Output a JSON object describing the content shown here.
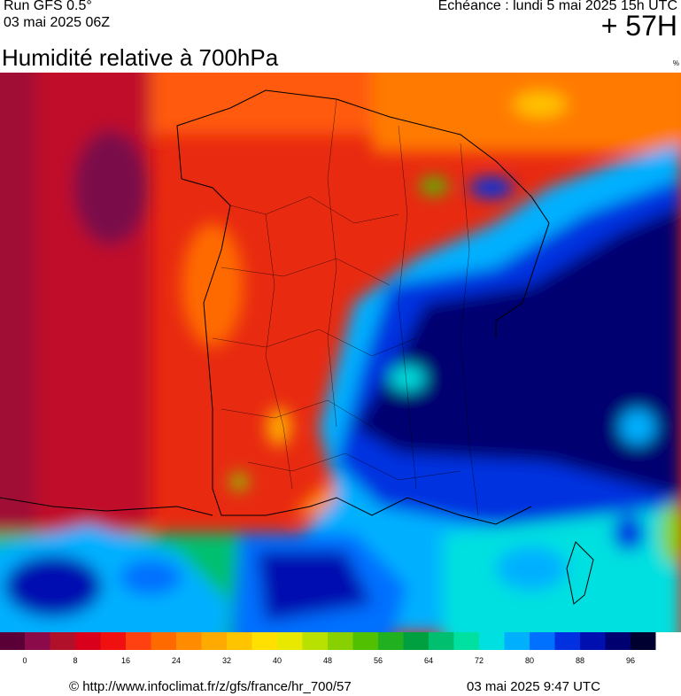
{
  "header": {
    "run": "Run GFS 0.5°",
    "run_date": "03 mai 2025 06Z",
    "forecast": "Echéance : lundi 5 mai 2025 15h UTC",
    "lead": "+ 57H",
    "title": "Humidité relative à 700hPa",
    "unit": "%"
  },
  "legend": {
    "ticks": [
      0,
      8,
      16,
      24,
      32,
      40,
      48,
      56,
      64,
      72,
      80,
      88,
      96
    ],
    "colors": [
      "#5a0036",
      "#8a0a4a",
      "#b0102a",
      "#d8001a",
      "#f01010",
      "#ff4010",
      "#ff6a00",
      "#ff8c00",
      "#ffaa00",
      "#ffc400",
      "#ffe000",
      "#e8e800",
      "#b8e000",
      "#88d000",
      "#50c000",
      "#20b020",
      "#00a040",
      "#00c070",
      "#00e0a0",
      "#00e0e0",
      "#00b0ff",
      "#0070ff",
      "#0030e0",
      "#0010b0",
      "#000070",
      "#000030"
    ]
  },
  "footer": {
    "source": "© http://www.infoclimat.fr/z/gfs/france/hr_700/57",
    "date": "03 mai 2025  9:47 UTC"
  }
}
